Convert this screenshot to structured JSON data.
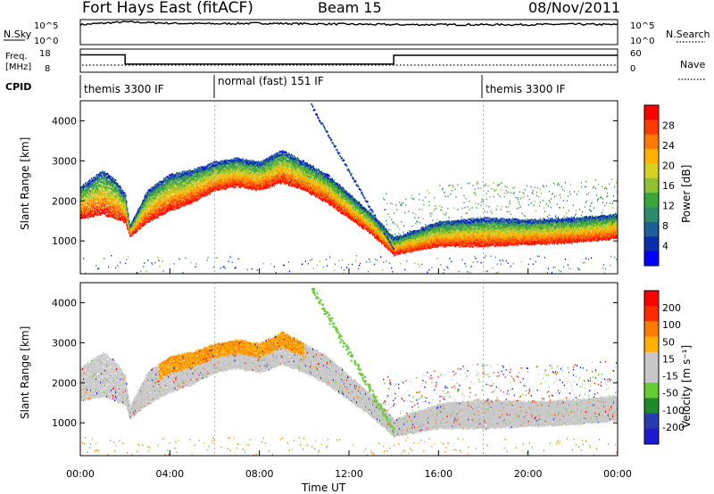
{
  "header": {
    "radar": "Fort Hays East (fitACF)",
    "beam": "Beam 15",
    "date": "08/Nov/2011"
  },
  "top_panels": {
    "nsky_label": "N.Sky",
    "nsky_ticks": [
      "10^5",
      "10^0"
    ],
    "nsearch_label": "N.Search",
    "nsearch_ticks": [
      "10^5",
      "10^0"
    ],
    "freq_label_line1": "Freq.",
    "freq_label_line2": "[MHz]",
    "freq_ticks": [
      "18",
      "8"
    ],
    "nave_label": "Nave",
    "nave_ticks": [
      "60",
      "0"
    ],
    "cpid_label": "CPID",
    "cpid_segments": [
      {
        "label": "themis 3300 IF",
        "start_hour": 0
      },
      {
        "label": "normal (fast) 151 IF",
        "start_hour": 6
      },
      {
        "label": "themis 3300 IF",
        "start_hour": 18
      }
    ]
  },
  "chart_data": [
    {
      "type": "line",
      "title": "N.Sky / N.Search",
      "x_units": "hours UT",
      "x": [
        0,
        2,
        4,
        6,
        8,
        10,
        12,
        14,
        16,
        18,
        20,
        22,
        24
      ],
      "series": [
        {
          "name": "N.Sky",
          "values": [
            4.3,
            4.9,
            4.6,
            4.5,
            4.6,
            4.5,
            4.4,
            4.3,
            4.3,
            4.3,
            4.3,
            4.4,
            4.3
          ]
        }
      ]
    },
    {
      "type": "line",
      "title": "Freq. / Nave",
      "x_units": "hours UT",
      "freq_steps": [
        {
          "start": 0,
          "end": 2,
          "freq_mhz": 15.5
        },
        {
          "start": 2,
          "end": 14,
          "freq_mhz": 11.5
        },
        {
          "start": 14,
          "end": 24,
          "freq_mhz": 15.3
        }
      ],
      "ylim": [
        8,
        18
      ]
    },
    {
      "type": "heatmap",
      "panel": "power",
      "ylabel": "Slant Range [km]",
      "yticks": [
        1000,
        2000,
        3000,
        4000
      ],
      "ylim": [
        180,
        4500
      ],
      "colorbar_label": "Power [dB]",
      "colorbar_ticks": [
        "28",
        "24",
        "20",
        "16",
        "12",
        "8",
        "4"
      ],
      "colors": [
        "#0000ff",
        "#0a2ea8",
        "#1f5f98",
        "#2d8a6a",
        "#3aa53a",
        "#8ec030",
        "#d8d020",
        "#ffb000",
        "#ff7a00",
        "#ff3a00",
        "#ff0000"
      ],
      "band_hours": [
        0,
        1,
        1.5,
        2,
        2.2,
        3,
        4,
        5,
        6,
        7,
        8,
        9,
        10,
        11,
        12,
        13,
        14,
        16,
        18,
        20,
        22,
        24
      ],
      "band_top_km": [
        2400,
        2800,
        2600,
        2200,
        1400,
        2300,
        2700,
        2800,
        3000,
        3100,
        3000,
        3300,
        3000,
        2700,
        2200,
        1700,
        1100,
        1500,
        1600,
        1550,
        1600,
        1700
      ],
      "band_bottom_km": [
        1600,
        1700,
        1600,
        1500,
        1150,
        1500,
        1800,
        2000,
        2300,
        2400,
        2300,
        2500,
        2300,
        2000,
        1600,
        1200,
        700,
        900,
        900,
        950,
        1000,
        1100
      ]
    },
    {
      "type": "heatmap",
      "panel": "velocity",
      "ylabel": "Slant Range [km]",
      "yticks": [
        1000,
        2000,
        3000,
        4000
      ],
      "ylim": [
        180,
        4500
      ],
      "colorbar_label": "Velocity [m s⁻¹]",
      "colorbar_ticks": [
        "200",
        "100",
        "50",
        "15",
        "-15",
        "-50",
        "-100",
        "-200"
      ],
      "colors": [
        "#1b1bcf",
        "#2a3ab0",
        "#1f8a2a",
        "#66cc33",
        "#c8c8c8",
        "#c8c8c8",
        "#ffb000",
        "#ff7a00",
        "#ff2a00",
        "#ff0000"
      ],
      "xlabel": "Time UT",
      "xticks": [
        "00:00",
        "04:00",
        "08:00",
        "12:00",
        "16:00",
        "20:00",
        "00:00"
      ]
    }
  ]
}
